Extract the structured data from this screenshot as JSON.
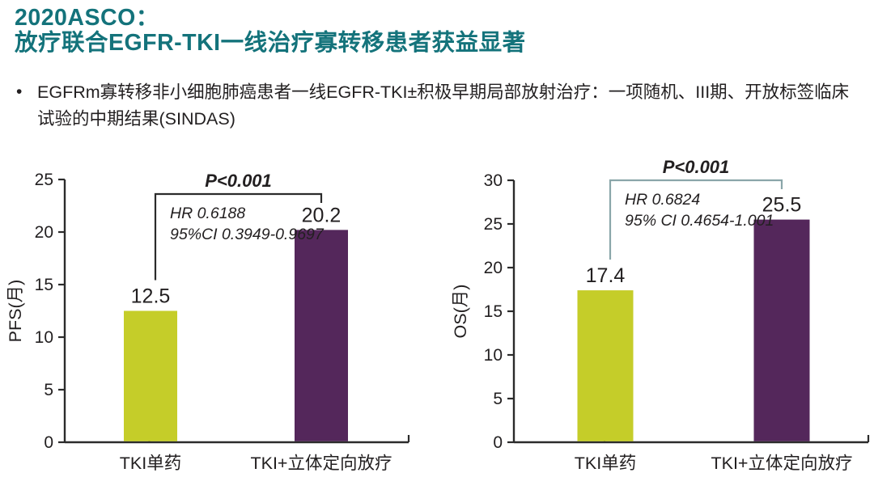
{
  "header": {
    "line1": "2020ASCO：",
    "line2": "放疗联合EGFR-TKI一线治疗寡转移患者获益显著",
    "accent_color": "#14737b"
  },
  "bullet": {
    "marker": "•",
    "text": "EGFRm寡转移非小细胞肺癌患者一线EGFR-TKI±积极早期局部放射治疗：一项随机、III期、开放标签临床试验的中期结果(SINDAS)"
  },
  "colors": {
    "bar_tki_mono": "#c5cd29",
    "bar_tki_sbrt": "#54275b",
    "axis": "#2b2b2b",
    "text": "#221f20",
    "title_teal": "#14737b",
    "bracket_left_chart": "#2b2b2b",
    "bracket_right_chart": "#8aa6a9"
  },
  "chart_data": [
    {
      "type": "bar",
      "title": "",
      "ylabel": "PFS(月)",
      "xlabel": "",
      "categories": [
        "TKI单药",
        "TKI+立体定向放疗"
      ],
      "values": [
        12.5,
        20.2
      ],
      "value_labels": [
        "12.5",
        "20.2"
      ],
      "bar_colors": [
        "#c5cd29",
        "#54275b"
      ],
      "ylim": [
        0,
        25
      ],
      "yticks": [
        0,
        5,
        10,
        15,
        20,
        25
      ],
      "grid": false,
      "legend": null,
      "annotation": {
        "p_label": "P<0.001",
        "hr_lines": [
          "HR 0.6188",
          "95%CI 0.3949-0.9697"
        ],
        "bracket_color": "#2b2b2b"
      }
    },
    {
      "type": "bar",
      "title": "",
      "ylabel": "OS(月)",
      "xlabel": "",
      "categories": [
        "TKI单药",
        "TKI+立体定向放疗"
      ],
      "values": [
        17.4,
        25.5
      ],
      "value_labels": [
        "17.4",
        "25.5"
      ],
      "bar_colors": [
        "#c5cd29",
        "#54275b"
      ],
      "ylim": [
        0,
        30
      ],
      "yticks": [
        0,
        5,
        10,
        15,
        20,
        25,
        30
      ],
      "grid": false,
      "legend": null,
      "annotation": {
        "p_label": "P<0.001",
        "hr_lines": [
          "HR 0.6824",
          "95% CI 0.4654-1.001"
        ],
        "bracket_color": "#8aa6a9"
      }
    }
  ]
}
